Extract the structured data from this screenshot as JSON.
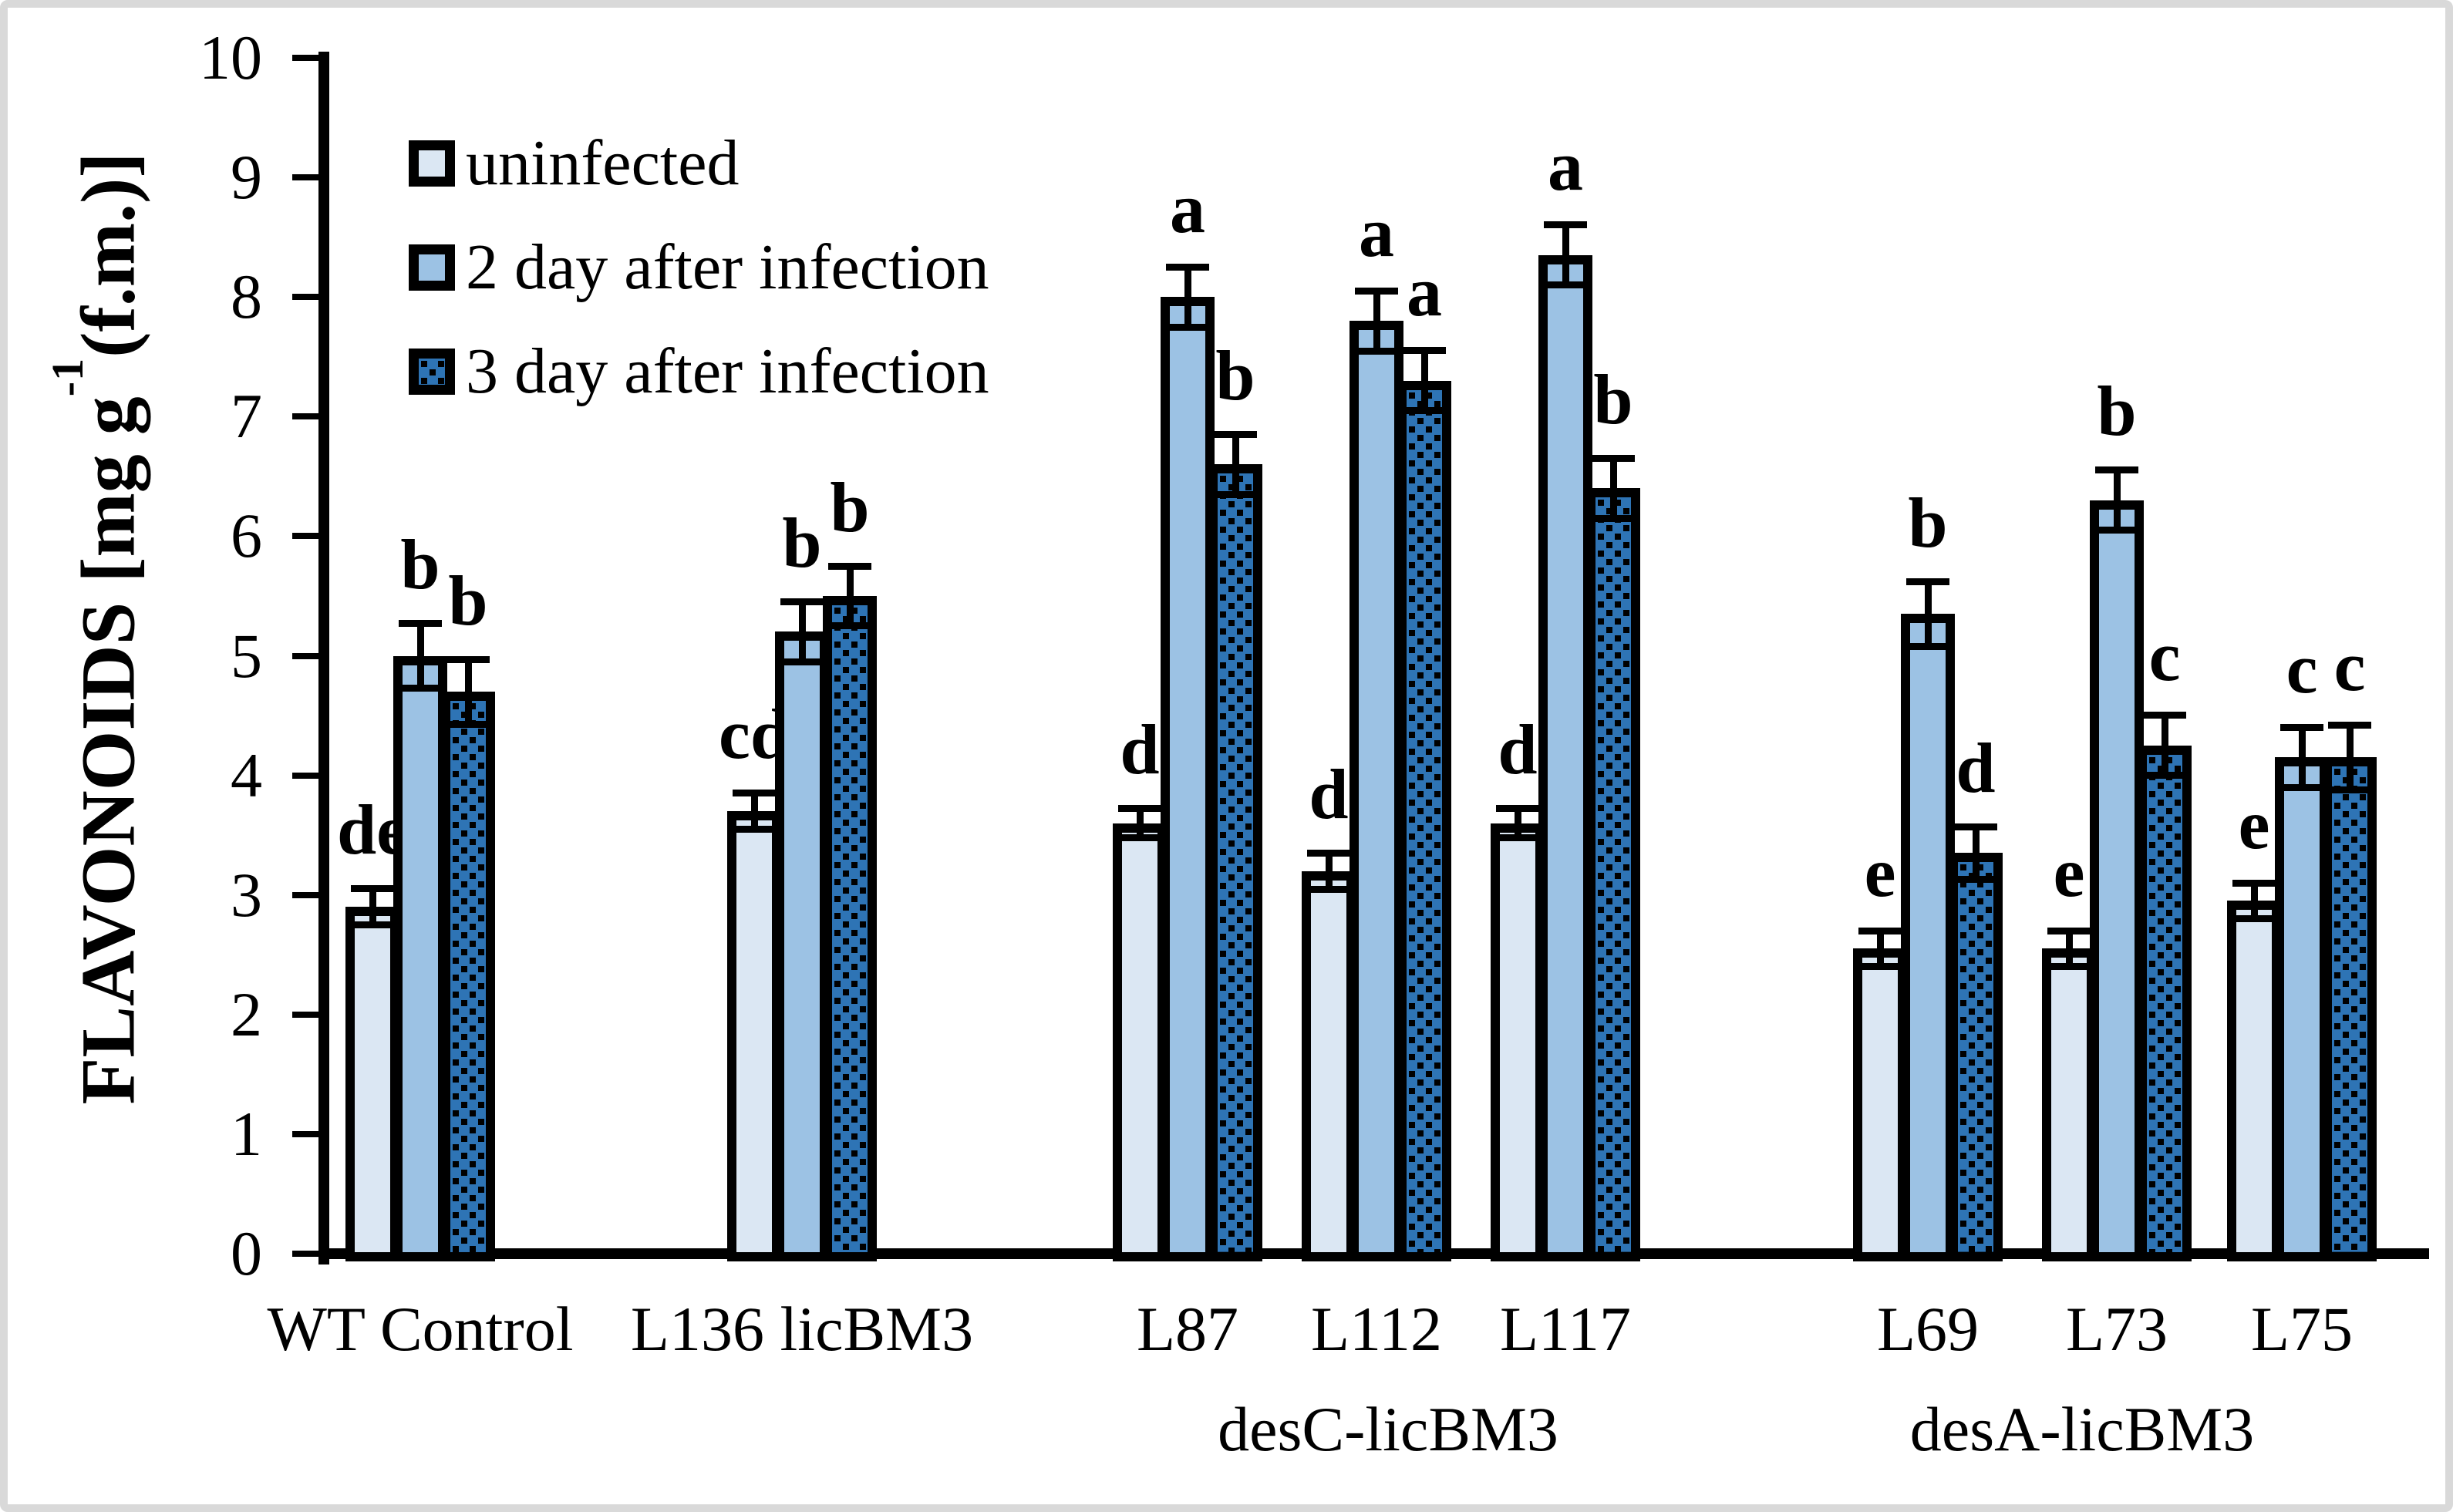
{
  "legend": {
    "items": [
      {
        "label": "uninfected"
      },
      {
        "label": "2 day after infection"
      },
      {
        "label": "3 day after infection"
      }
    ]
  },
  "y_axis": {
    "title_prefix": "FLAVONOIDS [mg g",
    "title_sup": "-1",
    "title_suffix": "(f.m.)]",
    "tick_labels": [
      "0",
      "1",
      "2",
      "3",
      "4",
      "5",
      "6",
      "7",
      "8",
      "9",
      "10"
    ]
  },
  "colors": {
    "uninfected_fill": "#dbe7f3",
    "day2_fill": "#9cc2e4",
    "day3_fill": "#2e74b5",
    "dot_color": "#000000",
    "outline": "#000000",
    "axis": "#000000",
    "frame_border": "#d9d9d9"
  },
  "chart_data": {
    "type": "bar",
    "title": "",
    "xlabel": "",
    "ylabel": "FLAVONOIDS [mg g-1(f.m.)]",
    "ylim": [
      0,
      10
    ],
    "yticks": [
      0,
      1,
      2,
      3,
      4,
      5,
      6,
      7,
      8,
      9,
      10
    ],
    "grid": false,
    "legend_position": "top-left-inside",
    "series_names": [
      "uninfected",
      "2 day after infection",
      "3 day after infection"
    ],
    "groups": [
      {
        "label": "WT Control",
        "cluster": "",
        "values": [
          2.9,
          5.0,
          4.7
        ],
        "errors": [
          0.18,
          0.3,
          0.3
        ],
        "letters": [
          "de",
          "b",
          "b"
        ]
      },
      {
        "label": "L136 licBM3",
        "cluster": "",
        "values": [
          3.7,
          5.2,
          5.5
        ],
        "errors": [
          0.18,
          0.28,
          0.28
        ],
        "letters": [
          "cd",
          "b",
          "b"
        ]
      },
      {
        "label": "L87",
        "cluster": "desC-licBM3",
        "values": [
          3.6,
          8.0,
          6.6
        ],
        "errors": [
          0.15,
          0.28,
          0.28
        ],
        "letters": [
          "d",
          "a",
          "b"
        ]
      },
      {
        "label": "L112",
        "cluster": "desC-licBM3",
        "values": [
          3.2,
          7.8,
          7.3
        ],
        "errors": [
          0.18,
          0.28,
          0.28
        ],
        "letters": [
          "d",
          "a",
          "a"
        ]
      },
      {
        "label": "L117",
        "cluster": "desC-licBM3",
        "values": [
          3.6,
          8.35,
          6.4
        ],
        "errors": [
          0.15,
          0.28,
          0.28
        ],
        "letters": [
          "d",
          "a",
          "b"
        ]
      },
      {
        "label": "L69",
        "cluster": "desA-licBM3",
        "values": [
          2.55,
          5.35,
          3.35
        ],
        "errors": [
          0.18,
          0.3,
          0.25
        ],
        "letters": [
          "e",
          "b",
          "d"
        ]
      },
      {
        "label": "L73",
        "cluster": "desA-licBM3",
        "values": [
          2.55,
          6.3,
          4.25
        ],
        "errors": [
          0.18,
          0.28,
          0.28
        ],
        "letters": [
          "e",
          "b",
          "c"
        ]
      },
      {
        "label": "L75",
        "cluster": "desA-licBM3",
        "values": [
          2.95,
          4.15,
          4.15
        ],
        "errors": [
          0.18,
          0.28,
          0.3
        ],
        "letters": [
          "e",
          "c",
          "c"
        ]
      }
    ],
    "cluster_labels": [
      {
        "text": "desC-licBM3"
      },
      {
        "text": "desA-licBM3"
      }
    ]
  }
}
